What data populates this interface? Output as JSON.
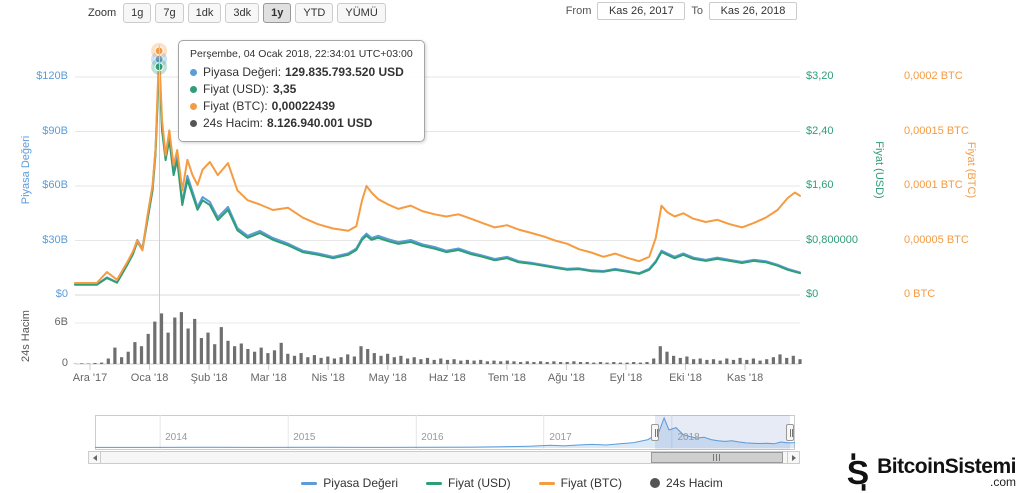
{
  "toolbar": {
    "zoom": {
      "label": "Zoom",
      "buttons": [
        "1g",
        "7g",
        "1dk",
        "3dk",
        "1y",
        "YTD",
        "YÜMÜ"
      ],
      "selected_index": 4
    },
    "range": {
      "from_label": "From",
      "from_value": "Kas 26, 2017",
      "to_label": "To",
      "to_value": "Kas 26, 2018"
    }
  },
  "tooltip": {
    "header": "Perşembe, 04 Ocak 2018, 22:34:01 UTC+03:00",
    "rows": [
      {
        "color": "#5b9cd9",
        "label": "Piyasa Değeri",
        "value": "129.835.793.520 USD"
      },
      {
        "color": "#2f9e77",
        "label": "Fiyat (USD)",
        "value": "3,35"
      },
      {
        "color": "#f59b42",
        "label": "Fiyat (BTC)",
        "value": "0,00022439"
      },
      {
        "color": "#555555",
        "label": "24s Hacim",
        "value": "8.126.940.001 USD"
      }
    ],
    "point": {
      "pct": 11.6,
      "marketcap": 129.8,
      "usd": 3.35,
      "btc_e5": 22.4
    }
  },
  "legend": {
    "items": [
      {
        "label": "Piyasa Değeri",
        "slug": "piyasa-degeri",
        "color": "#5b9cd9",
        "marker": "line"
      },
      {
        "label": "Fiyat (USD)",
        "slug": "fiyat-usd",
        "color": "#2f9e77",
        "marker": "line"
      },
      {
        "label": "Fiyat (BTC)",
        "slug": "fiyat-btc",
        "color": "#f59b42",
        "marker": "line"
      },
      {
        "label": "24s Hacim",
        "slug": "24s-hacim",
        "color": "#545454",
        "marker": "circle"
      }
    ]
  },
  "logo": {
    "name": "BitcoinSistemi",
    "tld": ".com"
  },
  "chart_data": {
    "type": "line",
    "title": "",
    "x_unit": "pct_of_visible_range",
    "x_range": {
      "from": "Kas 26, 2017",
      "to": "Kas 26, 2018"
    },
    "x_axis_labels": [
      "Ara '17",
      "Oca '18",
      "Şub '18",
      "Mar '18",
      "Nis '18",
      "May '18",
      "Haz '18",
      "Tem '18",
      "Ağu '18",
      "Eyl '18",
      "Eki '18",
      "Kas '18"
    ],
    "grid": "horizontal",
    "axes": {
      "marketcap": {
        "title": "Piyasa Değeri",
        "color": "#5b9cd9",
        "ticks": [
          {
            "label": "$0",
            "value": 0
          },
          {
            "label": "$30B",
            "value": 30
          },
          {
            "label": "$60B",
            "value": 60
          },
          {
            "label": "$90B",
            "value": 90
          },
          {
            "label": "$120B",
            "value": 120
          }
        ]
      },
      "usd": {
        "title": "Fiyat (USD)",
        "color": "#2f9e77",
        "ticks": [
          {
            "label": "$0",
            "value": 0
          },
          {
            "label": "$0,800000",
            "value": 0.8
          },
          {
            "label": "$1,60",
            "value": 1.6
          },
          {
            "label": "$2,40",
            "value": 2.4
          },
          {
            "label": "$3,20",
            "value": 3.2
          }
        ]
      },
      "btc": {
        "title": "Fiyat (BTC)",
        "color": "#f59b42",
        "value_unit": "1e-5 BTC",
        "ticks": [
          {
            "label": "0 BTC",
            "value": 0
          },
          {
            "label": "0,00005 BTC",
            "value": 5
          },
          {
            "label": "0,0001 BTC",
            "value": 10
          },
          {
            "label": "0,00015 BTC",
            "value": 15
          },
          {
            "label": "0,0002 BTC",
            "value": 20
          }
        ]
      },
      "volume": {
        "title": "24s Hacim",
        "color": "#555555",
        "ticks": [
          {
            "label": "0",
            "value": 0
          },
          {
            "label": "6B",
            "value": 6
          }
        ]
      }
    },
    "x": [
      0,
      1.5,
      3,
      4.4,
      5.8,
      7.2,
      8,
      8.6,
      9.3,
      10,
      10.7,
      11.1,
      11.6,
      12,
      12.5,
      13,
      13.6,
      14.1,
      14.8,
      15.5,
      16.2,
      16.9,
      17.6,
      18.6,
      19.7,
      21.1,
      22.4,
      23.8,
      25.5,
      27.3,
      29.4,
      31.4,
      33.5,
      35.6,
      37.7,
      38.8,
      39.6,
      40.2,
      40.9,
      41.8,
      43.2,
      44.6,
      46.3,
      47.9,
      49.6,
      51.2,
      52.9,
      54.6,
      56.2,
      57.9,
      59.6,
      61.2,
      62.9,
      64.5,
      66.2,
      67.9,
      69.5,
      71.2,
      72.9,
      74.5,
      76.2,
      77.8,
      79.2,
      80.1,
      80.9,
      81.7,
      82.7,
      83.9,
      85.3,
      87,
      88.6,
      90.3,
      92,
      93.6,
      95.3,
      96.9,
      98.3,
      99.3,
      100
    ],
    "series": [
      {
        "name": "Piyasa Değeri",
        "slug": "piyasa-degeri",
        "axis": "marketcap",
        "unit": "milyar USD",
        "color": "#5b9cd9",
        "values": [
          5.8,
          5.8,
          5.8,
          9.7,
          7.0,
          17.1,
          23.3,
          30.3,
          25.6,
          42.7,
          59.8,
          79.9,
          129.8,
          93.9,
          76.8,
          88.5,
          68.3,
          76.8,
          51.2,
          65.6,
          57.0,
          48.5,
          53.9,
          51.2,
          42.7,
          48.5,
          36.9,
          32.6,
          35.3,
          31.4,
          28.3,
          24.4,
          22.9,
          21.0,
          22.9,
          25.6,
          31.4,
          33.8,
          31.4,
          32.6,
          30.7,
          29.1,
          30.3,
          27.9,
          26.4,
          24.4,
          25.6,
          23.3,
          21.7,
          19.8,
          21.0,
          18.6,
          17.8,
          16.7,
          15.5,
          14.4,
          14.7,
          13.6,
          13.2,
          14.4,
          13.2,
          12.0,
          14.4,
          18.6,
          24.4,
          22.9,
          21.0,
          22.9,
          20.6,
          19.4,
          20.6,
          19.4,
          18.2,
          19.4,
          18.6,
          16.7,
          14.4,
          13.2,
          12.4
        ]
      },
      {
        "name": "Fiyat (USD)",
        "slug": "fiyat-usd",
        "axis": "usd",
        "unit": "USD",
        "color": "#2f9e77",
        "values": [
          0.15,
          0.15,
          0.15,
          0.25,
          0.18,
          0.44,
          0.6,
          0.78,
          0.66,
          1.1,
          1.54,
          2.06,
          3.35,
          2.42,
          1.98,
          2.28,
          1.76,
          1.98,
          1.32,
          1.69,
          1.47,
          1.25,
          1.39,
          1.32,
          1.1,
          1.25,
          0.95,
          0.84,
          0.91,
          0.81,
          0.73,
          0.63,
          0.59,
          0.54,
          0.59,
          0.66,
          0.81,
          0.87,
          0.81,
          0.84,
          0.79,
          0.75,
          0.78,
          0.72,
          0.68,
          0.63,
          0.66,
          0.6,
          0.56,
          0.51,
          0.54,
          0.48,
          0.46,
          0.43,
          0.4,
          0.37,
          0.38,
          0.35,
          0.34,
          0.37,
          0.34,
          0.31,
          0.37,
          0.48,
          0.63,
          0.59,
          0.54,
          0.59,
          0.53,
          0.5,
          0.53,
          0.5,
          0.47,
          0.5,
          0.48,
          0.43,
          0.37,
          0.34,
          0.32
        ]
      },
      {
        "name": "Fiyat (BTC)",
        "slug": "fiyat-btc",
        "axis": "btc",
        "unit": "1e-5 BTC",
        "color": "#f59b42",
        "values": [
          1.1,
          1.1,
          1.1,
          2.1,
          1.4,
          3.0,
          4.0,
          5.0,
          4.1,
          7.3,
          10.1,
          13.3,
          22.4,
          16.1,
          12.8,
          15.1,
          11.9,
          13.3,
          9.6,
          12.4,
          11.0,
          10.1,
          11.5,
          12.2,
          11.0,
          12.1,
          9.6,
          8.7,
          8.3,
          7.8,
          8.0,
          7.1,
          6.5,
          6.1,
          5.9,
          6.3,
          8.7,
          10.0,
          9.4,
          8.8,
          8.3,
          7.9,
          8.2,
          7.7,
          7.4,
          7.2,
          7.4,
          7.0,
          6.6,
          6.2,
          6.4,
          6.0,
          5.7,
          5.4,
          5.0,
          4.7,
          4.2,
          3.9,
          3.5,
          3.8,
          3.4,
          3.1,
          3.5,
          5.2,
          8.2,
          7.6,
          7.2,
          7.5,
          7.0,
          6.7,
          6.9,
          6.5,
          6.2,
          6.6,
          7.1,
          7.8,
          8.9,
          9.4,
          9.1
        ]
      }
    ],
    "volume": {
      "name": "24s Hacim",
      "slug": "24s-hacim",
      "unit": "milyar USD",
      "color": "#6f6f6f",
      "values": [
        0.05,
        0.1,
        0.08,
        0.15,
        0.2,
        0.8,
        2.4,
        1.0,
        1.8,
        3.2,
        2.6,
        4.4,
        6.2,
        7.4,
        4.6,
        6.8,
        7.6,
        5.2,
        6.6,
        3.8,
        4.6,
        2.9,
        5.4,
        3.4,
        2.6,
        3.0,
        2.2,
        1.8,
        2.4,
        1.6,
        2.0,
        3.1,
        1.5,
        1.2,
        1.6,
        1.0,
        1.3,
        0.9,
        1.1,
        0.8,
        1.0,
        1.4,
        1.1,
        2.6,
        2.2,
        1.6,
        1.2,
        1.5,
        1.0,
        1.2,
        0.8,
        1.0,
        0.7,
        0.9,
        0.6,
        0.8,
        0.6,
        0.7,
        0.5,
        0.6,
        0.5,
        0.6,
        0.4,
        0.5,
        0.4,
        0.5,
        0.4,
        0.3,
        0.4,
        0.3,
        0.4,
        0.3,
        0.4,
        0.3,
        0.3,
        0.4,
        0.3,
        0.3,
        0.2,
        0.3,
        0.2,
        0.3,
        0.2,
        0.2,
        0.3,
        0.2,
        0.3,
        0.8,
        2.6,
        1.8,
        1.2,
        0.9,
        1.1,
        0.7,
        0.8,
        0.6,
        0.7,
        0.5,
        0.8,
        0.6,
        0.9,
        0.6,
        0.8,
        0.5,
        0.7,
        1.0,
        1.4,
        0.9,
        1.2,
        0.7
      ]
    },
    "navigator": {
      "years": [
        "2014",
        "2015",
        "2016",
        "2017",
        "2018"
      ],
      "selection": {
        "start_pct": 80,
        "end_pct": 99.3
      },
      "series": [
        [
          0,
          0.02
        ],
        [
          8,
          0.02
        ],
        [
          16,
          0.025
        ],
        [
          24,
          0.02
        ],
        [
          32,
          0.022
        ],
        [
          40,
          0.02
        ],
        [
          48,
          0.025
        ],
        [
          54,
          0.03
        ],
        [
          58,
          0.04
        ],
        [
          62,
          0.06
        ],
        [
          65,
          0.09
        ],
        [
          67,
          0.07
        ],
        [
          69,
          0.1
        ],
        [
          71,
          0.12
        ],
        [
          73,
          0.1
        ],
        [
          75,
          0.14
        ],
        [
          77,
          0.18
        ],
        [
          79,
          0.28
        ],
        [
          80.5,
          0.5
        ],
        [
          81.3,
          1.0
        ],
        [
          82,
          0.6
        ],
        [
          83,
          0.68
        ],
        [
          84,
          0.45
        ],
        [
          85,
          0.38
        ],
        [
          86,
          0.33
        ],
        [
          87,
          0.36
        ],
        [
          88,
          0.28
        ],
        [
          89,
          0.24
        ],
        [
          90,
          0.22
        ],
        [
          91,
          0.24
        ],
        [
          92,
          0.2
        ],
        [
          93,
          0.17
        ],
        [
          94,
          0.16
        ],
        [
          95,
          0.15
        ],
        [
          96,
          0.16
        ],
        [
          97,
          0.14
        ],
        [
          98,
          0.2
        ],
        [
          99,
          0.17
        ],
        [
          100,
          0.18
        ]
      ]
    }
  }
}
